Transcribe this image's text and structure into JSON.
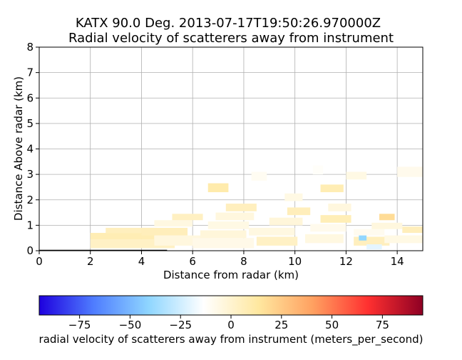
{
  "chart_data": {
    "type": "heatmap",
    "title_lines": [
      "KATX 90.0 Deg. 2013-07-17T19:50:26.970000Z",
      "Radial velocity of scatterers away from instrument"
    ],
    "xlabel": "Distance from radar (km)",
    "ylabel": "Distance Above radar  (km)",
    "xlim": [
      0,
      15
    ],
    "ylim": [
      0,
      8
    ],
    "xticks": [
      0,
      2,
      4,
      6,
      8,
      10,
      12,
      14
    ],
    "yticks": [
      0,
      1,
      2,
      3,
      4,
      5,
      6,
      7,
      8
    ],
    "grid": true,
    "colormap": "jet-like",
    "colorbar": {
      "label": "radial velocity of scatterers away from instrument (meters_per_second)",
      "range": [
        -95,
        95
      ],
      "ticks": [
        -75,
        -50,
        -25,
        0,
        25,
        50,
        75
      ],
      "tick_labels": [
        "−75",
        "−50",
        "−25",
        "0",
        "25",
        "50",
        "75"
      ],
      "colors": [
        "#1e00de",
        "#4f7dff",
        "#8fd6ff",
        "#ffffff",
        "#ffe8a0",
        "#ffa060",
        "#ff3030",
        "#8e0024"
      ]
    },
    "ground_line": {
      "x": [
        0,
        5.0
      ],
      "y": 0
    },
    "cells": [
      {
        "x": 2.0,
        "y": 0.1,
        "w": 3.3,
        "h": 0.35,
        "v": 3
      },
      {
        "x": 2.0,
        "y": 0.45,
        "w": 2.5,
        "h": 0.25,
        "v": 8
      },
      {
        "x": 2.6,
        "y": 0.7,
        "w": 2.0,
        "h": 0.2,
        "v": 5
      },
      {
        "x": 4.5,
        "y": 0.2,
        "w": 2.2,
        "h": 0.4,
        "v": -4
      },
      {
        "x": 4.0,
        "y": 0.6,
        "w": 1.8,
        "h": 0.3,
        "v": 6
      },
      {
        "x": 4.5,
        "y": 0.95,
        "w": 1.5,
        "h": 0.25,
        "v": -5
      },
      {
        "x": 5.2,
        "y": 1.2,
        "w": 1.2,
        "h": 0.25,
        "v": 4
      },
      {
        "x": 6.0,
        "y": 0.1,
        "w": 2.4,
        "h": 0.4,
        "v": -7
      },
      {
        "x": 6.3,
        "y": 0.5,
        "w": 1.8,
        "h": 0.3,
        "v": -3
      },
      {
        "x": 6.6,
        "y": 0.85,
        "w": 1.6,
        "h": 0.3,
        "v": -6
      },
      {
        "x": 6.9,
        "y": 1.2,
        "w": 1.5,
        "h": 0.3,
        "v": -4
      },
      {
        "x": 7.3,
        "y": 1.55,
        "w": 1.2,
        "h": 0.3,
        "v": 5
      },
      {
        "x": 6.6,
        "y": 2.3,
        "w": 0.8,
        "h": 0.35,
        "v": 10
      },
      {
        "x": 8.5,
        "y": 0.2,
        "w": 1.6,
        "h": 0.35,
        "v": 3
      },
      {
        "x": 8.2,
        "y": 0.6,
        "w": 1.8,
        "h": 0.3,
        "v": -5
      },
      {
        "x": 9.0,
        "y": 1.0,
        "w": 1.3,
        "h": 0.3,
        "v": -3
      },
      {
        "x": 9.7,
        "y": 1.4,
        "w": 0.9,
        "h": 0.3,
        "v": 6
      },
      {
        "x": 9.6,
        "y": 1.95,
        "w": 0.7,
        "h": 0.3,
        "v": -6
      },
      {
        "x": 8.3,
        "y": 2.75,
        "w": 0.6,
        "h": 0.35,
        "v": -10
      },
      {
        "x": 10.4,
        "y": 0.3,
        "w": 1.5,
        "h": 0.35,
        "v": -5
      },
      {
        "x": 10.6,
        "y": 0.75,
        "w": 1.4,
        "h": 0.3,
        "v": -8
      },
      {
        "x": 11.0,
        "y": 1.1,
        "w": 1.2,
        "h": 0.3,
        "v": 7
      },
      {
        "x": 11.3,
        "y": 1.55,
        "w": 0.9,
        "h": 0.3,
        "v": -4
      },
      {
        "x": 11.0,
        "y": 2.3,
        "w": 0.9,
        "h": 0.3,
        "v": 8
      },
      {
        "x": 10.7,
        "y": 3.0,
        "w": 0.4,
        "h": 0.35,
        "v": -12
      },
      {
        "x": 12.0,
        "y": 2.8,
        "w": 0.8,
        "h": 0.3,
        "v": -6
      },
      {
        "x": 12.3,
        "y": 0.2,
        "w": 1.4,
        "h": 0.35,
        "v": 5
      },
      {
        "x": 12.3,
        "y": 0.6,
        "w": 1.2,
        "h": 0.25,
        "v": -9
      },
      {
        "x": 12.5,
        "y": 0.4,
        "w": 0.3,
        "h": 0.2,
        "v": -40
      },
      {
        "x": 12.8,
        "y": 0.05,
        "w": 0.6,
        "h": 0.2,
        "v": -20
      },
      {
        "x": 13.3,
        "y": 1.2,
        "w": 0.6,
        "h": 0.25,
        "v": 18
      },
      {
        "x": 13.0,
        "y": 0.85,
        "w": 1.2,
        "h": 0.25,
        "v": -4
      },
      {
        "x": 13.5,
        "y": 0.3,
        "w": 1.5,
        "h": 0.3,
        "v": -6
      },
      {
        "x": 14.0,
        "y": 2.9,
        "w": 1.0,
        "h": 0.4,
        "v": -8
      },
      {
        "x": 14.2,
        "y": 0.7,
        "w": 0.8,
        "h": 0.25,
        "v": 6
      }
    ]
  }
}
